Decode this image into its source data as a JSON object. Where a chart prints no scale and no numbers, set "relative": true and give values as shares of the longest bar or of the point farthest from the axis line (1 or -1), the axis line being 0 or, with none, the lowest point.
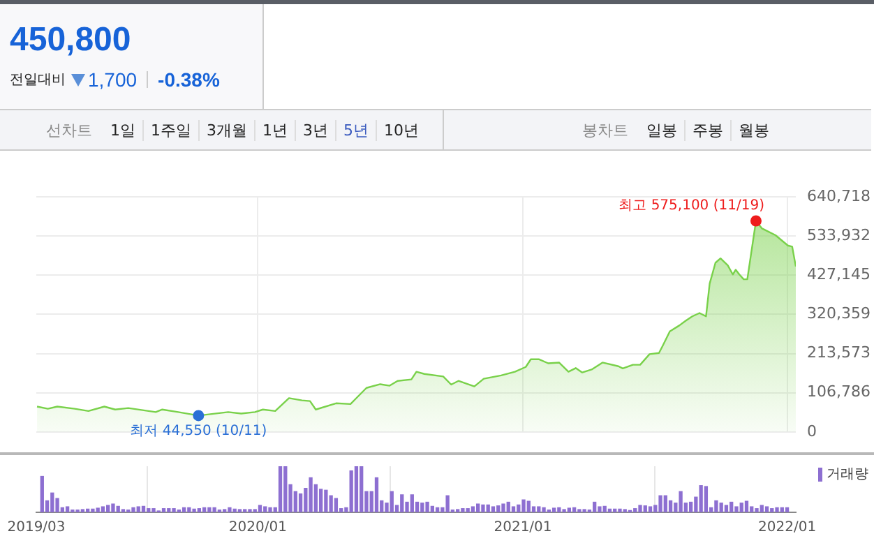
{
  "chart_data": [
    {
      "type": "other",
      "title": "450,800",
      "annotations": [
        "전일대비",
        "1,700",
        "-0.38%",
        "선차트",
        "1일",
        "1주일",
        "3개월",
        "1년",
        "3년",
        "5년",
        "10년",
        "봉차트",
        "일봉",
        "주봉",
        "월봉"
      ]
    },
    {
      "type": "area",
      "grid": true,
      "tick_labels": "y",
      "xlim": [
        "2019-03-01",
        "2022-01-13"
      ],
      "xticks": [
        {
          "value": "2020-01-01",
          "label": null
        },
        {
          "value": "2021-01-01",
          "label": null
        },
        {
          "value": "2022-01-01",
          "label": null
        }
      ],
      "ylim": [
        0,
        640718
      ],
      "yticks": [
        {
          "value": 0,
          "label": "0"
        },
        {
          "value": 106786,
          "label": "106,786"
        },
        {
          "value": 213573,
          "label": "213,573"
        },
        {
          "value": 320359,
          "label": "320,359"
        },
        {
          "value": 427145,
          "label": "427,145"
        },
        {
          "value": 533932,
          "label": "533,932"
        },
        {
          "value": 640718,
          "label": "640,718"
        }
      ],
      "series": [
        {
          "type": "area",
          "color": "#79d14a",
          "x": [
            "2019-03-02",
            "2019-03-17",
            "2019-03-30",
            "2019-04-23",
            "2019-05-12",
            "2019-06-03",
            "2019-06-18",
            "2019-07-06",
            "2019-08-13",
            "2019-08-22",
            "2019-09-13",
            "2019-10-11",
            "2019-11-21",
            "2019-12-09",
            "2019-12-28",
            "2020-01-08",
            "2020-01-25",
            "2020-02-13",
            "2020-03-02",
            "2020-03-13",
            "2020-03-21",
            "2020-04-18",
            "2020-05-08",
            "2020-05-30",
            "2020-06-18",
            "2020-07-01",
            "2020-07-12",
            "2020-07-31",
            "2020-08-07",
            "2020-08-18",
            "2020-09-13",
            "2020-09-24",
            "2020-10-04",
            "2020-10-26",
            "2020-11-08",
            "2020-12-02",
            "2020-12-21",
            "2021-01-05",
            "2021-01-12",
            "2021-01-23",
            "2021-02-05",
            "2021-02-20",
            "2021-03-05",
            "2021-03-15",
            "2021-03-24",
            "2021-04-06",
            "2021-04-21",
            "2021-05-13",
            "2021-05-19",
            "2021-06-02",
            "2021-06-12",
            "2021-06-25",
            "2021-07-08",
            "2021-07-13",
            "2021-07-23",
            "2021-08-05",
            "2021-08-14",
            "2021-08-23",
            "2021-09-02",
            "2021-09-11",
            "2021-09-16",
            "2021-09-24",
            "2021-10-01",
            "2021-10-11",
            "2021-10-18",
            "2021-10-22",
            "2021-10-27",
            "2021-11-02",
            "2021-11-07",
            "2021-11-19",
            "2021-11-27",
            "2021-12-16",
            "2022-01-02",
            "2022-01-08",
            "2022-01-13"
          ],
          "values": [
            69000,
            63000,
            69000,
            63000,
            57000,
            69000,
            61000,
            65000,
            54000,
            61000,
            54000,
            44550,
            54000,
            50000,
            54000,
            61000,
            57000,
            92000,
            86000,
            84000,
            61000,
            78000,
            76000,
            120000,
            130000,
            126000,
            139000,
            143000,
            164000,
            158000,
            151000,
            129000,
            139000,
            124000,
            145000,
            154000,
            164000,
            177000,
            198000,
            198000,
            187000,
            189000,
            164000,
            174000,
            162000,
            170000,
            189000,
            179000,
            173000,
            183000,
            183000,
            212000,
            215000,
            234000,
            274000,
            290000,
            303000,
            315000,
            324000,
            315000,
            404000,
            461000,
            473000,
            454000,
            429000,
            442000,
            429000,
            416000,
            416000,
            575100,
            555000,
            536000,
            508000,
            505000,
            450800
          ]
        },
        {
          "type": "scatter",
          "color": "#ee1c1c",
          "x": [
            "2021-11-19"
          ],
          "values": [
            575100
          ]
        },
        {
          "type": "scatter",
          "color": "#2a6fd6",
          "x": [
            "2019-10-11"
          ],
          "values": [
            44550
          ]
        }
      ],
      "annotations": [
        {
          "text": "최고 575,100 (11/19)",
          "x": "2021-11-19",
          "y": 575100
        },
        {
          "text": "최저 44,550 (10/11)",
          "x": "2019-10-11",
          "y": 44550
        }
      ]
    },
    {
      "type": "bar",
      "relative": true,
      "grid": "x",
      "legend": "top right",
      "xlim": [
        "2019-03-01",
        "2022-01-13"
      ],
      "xticks": [
        {
          "value": "2019-03-01",
          "label": "2019/03"
        },
        {
          "value": "2020-01-01",
          "label": "2020/01"
        },
        {
          "value": "2021-01-01",
          "label": "2021/01"
        },
        {
          "value": "2022-01-01",
          "label": "2022/01"
        }
      ],
      "series": [
        {
          "name": "거래량",
          "color": "#8d6fd1",
          "x": [
            "2019-03-09",
            "2019-03-16",
            "2019-03-23",
            "2019-03-30",
            "2019-04-06",
            "2019-04-13",
            "2019-04-20",
            "2019-04-27",
            "2019-05-04",
            "2019-05-11",
            "2019-05-18",
            "2019-05-25",
            "2019-06-01",
            "2019-06-08",
            "2019-06-15",
            "2019-06-22",
            "2019-06-29",
            "2019-07-06",
            "2019-07-13",
            "2019-07-20",
            "2019-07-27",
            "2019-08-03",
            "2019-08-10",
            "2019-08-17",
            "2019-08-24",
            "2019-08-31",
            "2019-09-07",
            "2019-09-14",
            "2019-09-21",
            "2019-09-28",
            "2019-10-05",
            "2019-10-12",
            "2019-10-19",
            "2019-10-26",
            "2019-11-02",
            "2019-11-09",
            "2019-11-16",
            "2019-11-23",
            "2019-11-30",
            "2019-12-07",
            "2019-12-14",
            "2019-12-21",
            "2019-12-28",
            "2020-01-04",
            "2020-01-11",
            "2020-01-18",
            "2020-01-25",
            "2020-02-01",
            "2020-02-08",
            "2020-02-15",
            "2020-02-22",
            "2020-02-29",
            "2020-03-07",
            "2020-03-14",
            "2020-03-21",
            "2020-03-28",
            "2020-04-04",
            "2020-04-11",
            "2020-04-18",
            "2020-04-25",
            "2020-05-02",
            "2020-05-09",
            "2020-05-16",
            "2020-05-23",
            "2020-05-30",
            "2020-06-06",
            "2020-06-13",
            "2020-06-20",
            "2020-06-27",
            "2020-07-04",
            "2020-07-11",
            "2020-07-18",
            "2020-07-25",
            "2020-08-01",
            "2020-08-08",
            "2020-08-15",
            "2020-08-22",
            "2020-08-29",
            "2020-09-05",
            "2020-09-12",
            "2020-09-19",
            "2020-09-26",
            "2020-10-03",
            "2020-10-10",
            "2020-10-17",
            "2020-10-24",
            "2020-10-31",
            "2020-11-07",
            "2020-11-14",
            "2020-11-21",
            "2020-11-28",
            "2020-12-05",
            "2020-12-12",
            "2020-12-19",
            "2020-12-26",
            "2021-01-02",
            "2021-01-09",
            "2021-01-16",
            "2021-01-23",
            "2021-01-30",
            "2021-02-06",
            "2021-02-13",
            "2021-02-20",
            "2021-02-27",
            "2021-03-06",
            "2021-03-13",
            "2021-03-20",
            "2021-03-27",
            "2021-04-03",
            "2021-04-10",
            "2021-04-17",
            "2021-04-24",
            "2021-05-01",
            "2021-05-08",
            "2021-05-15",
            "2021-05-22",
            "2021-05-29",
            "2021-06-05",
            "2021-06-12",
            "2021-06-19",
            "2021-06-26",
            "2021-07-03",
            "2021-07-10",
            "2021-07-17",
            "2021-07-24",
            "2021-07-31",
            "2021-08-07",
            "2021-08-14",
            "2021-08-21",
            "2021-08-28",
            "2021-09-04",
            "2021-09-11",
            "2021-09-18",
            "2021-09-25",
            "2021-10-02",
            "2021-10-09",
            "2021-10-16",
            "2021-10-23",
            "2021-10-30",
            "2021-11-06",
            "2021-11-13",
            "2021-11-20",
            "2021-11-27",
            "2021-12-04",
            "2021-12-11",
            "2021-12-18",
            "2021-12-25",
            "2022-01-01"
          ],
          "values": [
            0.78,
            0.25,
            0.42,
            0.3,
            0.1,
            0.12,
            0.05,
            0.05,
            0.06,
            0.07,
            0.07,
            0.09,
            0.12,
            0.15,
            0.18,
            0.13,
            0.06,
            0.05,
            0.1,
            0.12,
            0.13,
            0.08,
            0.08,
            0.03,
            0.08,
            0.08,
            0.08,
            0.05,
            0.1,
            0.1,
            0.07,
            0.08,
            0.1,
            0.1,
            0.1,
            0.05,
            0.06,
            0.1,
            0.07,
            0.06,
            0.06,
            0.06,
            0.06,
            0.15,
            0.12,
            0.1,
            0.1,
            1,
            1,
            0.6,
            0.45,
            0.4,
            0.52,
            0.75,
            0.6,
            0.5,
            0.48,
            0.36,
            0.3,
            0.08,
            0.1,
            0.9,
            1,
            1,
            0.45,
            0.45,
            0.75,
            0.25,
            0.2,
            0.45,
            0.15,
            0.38,
            0.22,
            0.38,
            0.22,
            0.2,
            0.22,
            0.13,
            0.1,
            0.1,
            0.36,
            0.05,
            0.06,
            0.08,
            0.08,
            0.12,
            0.18,
            0.16,
            0.16,
            0.12,
            0.14,
            0.18,
            0.22,
            0.12,
            0.16,
            0.27,
            0.24,
            0.12,
            0.12,
            0.1,
            0.05,
            0.09,
            0.1,
            0.06,
            0.09,
            0.1,
            0.06,
            0.06,
            0.05,
            0.22,
            0.12,
            0.13,
            0.07,
            0.07,
            0.07,
            0.06,
            0.04,
            0.08,
            0.15,
            0.14,
            0.12,
            0.15,
            0.36,
            0.36,
            0.25,
            0.2,
            0.45,
            0.2,
            0.22,
            0.33,
            0.58,
            0.56,
            0.1,
            0.25,
            0.2,
            0.15,
            0.22,
            0.12,
            0.2,
            0.24,
            0.12,
            0.08,
            0.15,
            0.12,
            0.08,
            0.1,
            0.1,
            0.1
          ]
        }
      ]
    }
  ]
}
